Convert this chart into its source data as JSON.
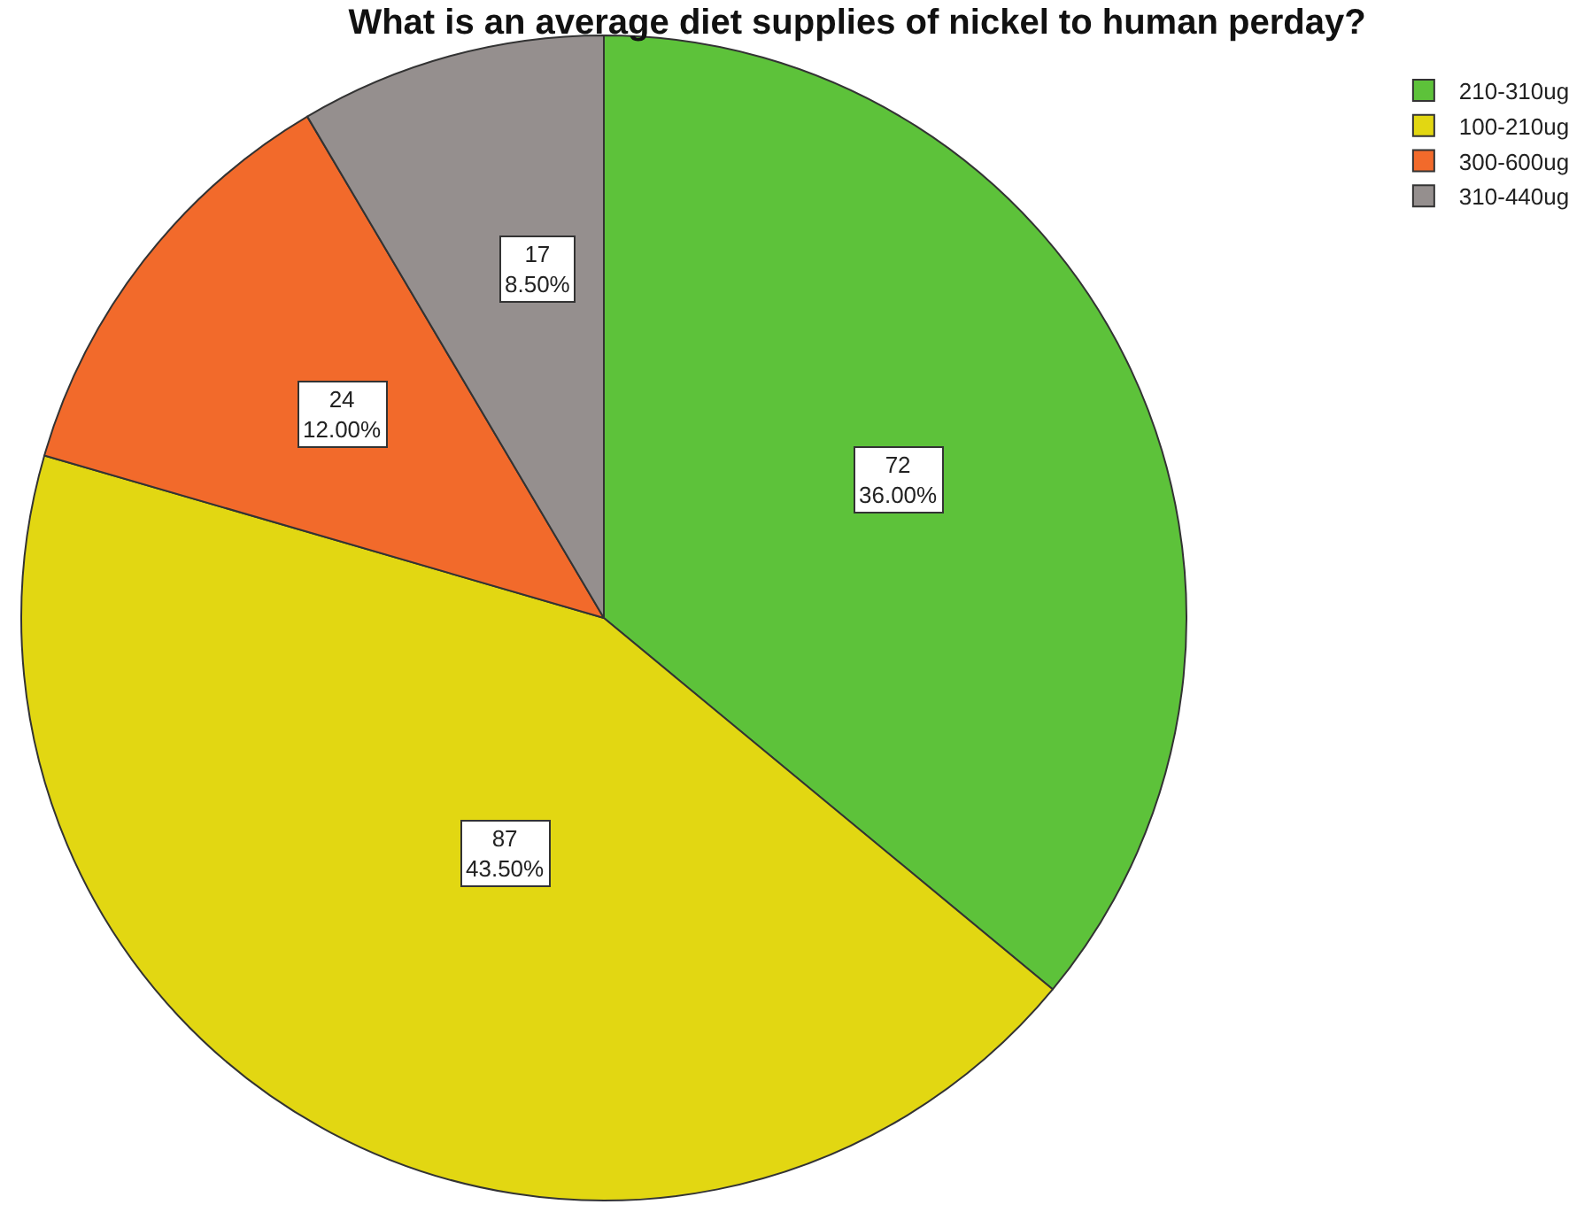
{
  "chart_data": {
    "type": "pie",
    "title": "What is an average diet supplies of nickel to human perday?",
    "categories": [
      "210-310ug",
      "100-210ug",
      "300-600ug",
      "310-440ug"
    ],
    "values": [
      72,
      87,
      24,
      17
    ],
    "colors": [
      "#5dc23a",
      "#e2d712",
      "#f26a2b",
      "#958f8e"
    ],
    "value_labels": [
      "72\n36.00%",
      "87\n43.50%",
      "24\n12.00%",
      "17\n8.50%"
    ],
    "legend": "top right"
  }
}
